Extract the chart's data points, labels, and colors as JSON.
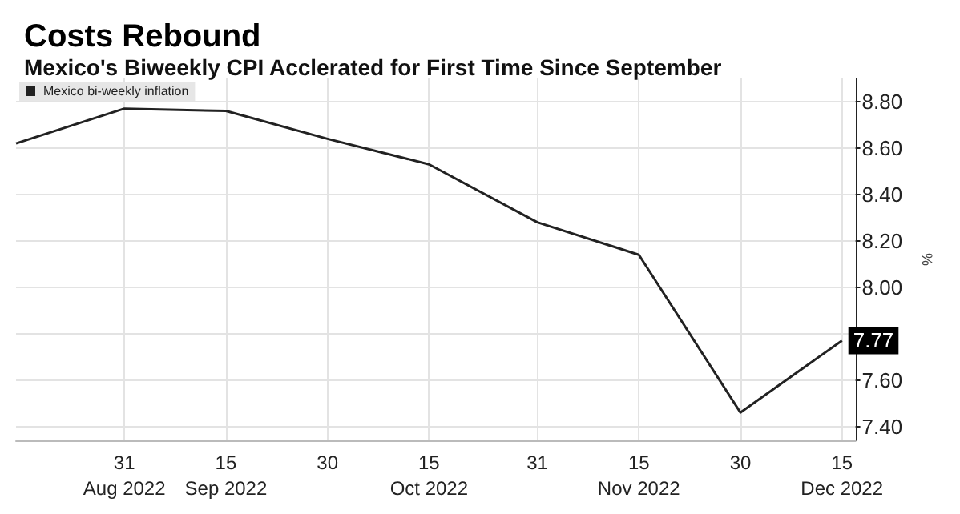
{
  "chart_data": {
    "type": "line",
    "title": "Costs Rebound",
    "subtitle": "Mexico's Biweekly CPI Acclerated for First Time Since September",
    "ylabel": "%",
    "x": [
      "2022-08-15",
      "2022-08-31",
      "2022-09-15",
      "2022-09-30",
      "2022-10-15",
      "2022-10-31",
      "2022-11-15",
      "2022-11-30",
      "2022-12-15"
    ],
    "series": [
      {
        "name": "Mexico bi-weekly inflation",
        "color": "#222222",
        "values": [
          8.62,
          8.77,
          8.76,
          8.64,
          8.53,
          8.28,
          8.14,
          7.46,
          7.77
        ]
      }
    ],
    "xlim": [
      "2022-08-15",
      "2022-12-17"
    ],
    "xticks": [
      {
        "value": "2022-08-31",
        "label": "31\nAug 2022"
      },
      {
        "value": "2022-09-15",
        "label": "15\nSep 2022"
      },
      {
        "value": "2022-09-30",
        "label": "30"
      },
      {
        "value": "2022-10-15",
        "label": "15\nOct 2022"
      },
      {
        "value": "2022-10-31",
        "label": "31"
      },
      {
        "value": "2022-11-15",
        "label": "15\nNov 2022"
      },
      {
        "value": "2022-11-30",
        "label": "30"
      },
      {
        "value": "2022-12-15",
        "label": "15\nDec 2022"
      }
    ],
    "ylim": [
      7.34,
      8.9
    ],
    "yticks": [
      {
        "value": 7.4,
        "label": "7.40"
      },
      {
        "value": 7.6,
        "label": "7.60"
      },
      {
        "value": 7.8,
        "label": null
      },
      {
        "value": 8.0,
        "label": "8.00"
      },
      {
        "value": 8.2,
        "label": "8.20"
      },
      {
        "value": 8.4,
        "label": "8.40"
      },
      {
        "value": 8.6,
        "label": "8.60"
      },
      {
        "value": 8.8,
        "label": "8.80"
      }
    ],
    "annotations": [
      {
        "text": "7.77",
        "x": "2022-12-15",
        "y": 7.77
      }
    ],
    "grid": true,
    "legend": "top left",
    "marker": "none",
    "line_style": "solid"
  }
}
